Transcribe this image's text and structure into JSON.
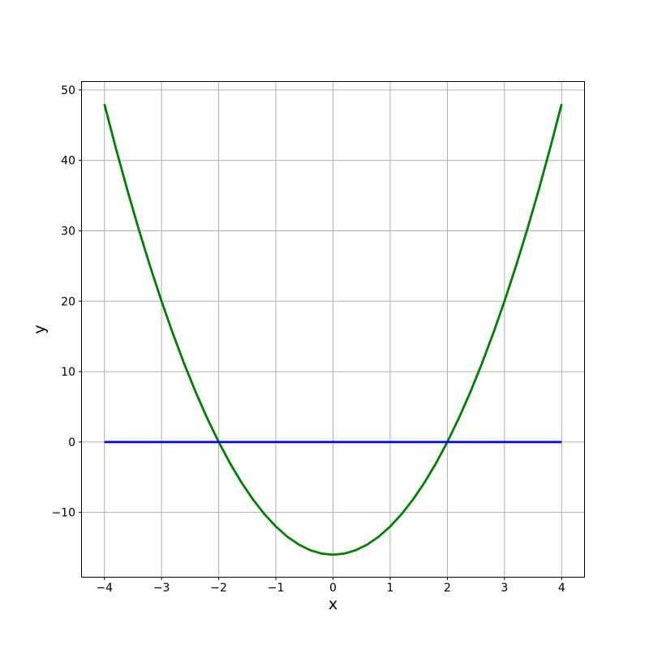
{
  "figure": {
    "background": "#ffffff",
    "spine_color": "#000000"
  },
  "chart_data": {
    "type": "line",
    "title": "",
    "xlabel": "x",
    "ylabel": "y",
    "xlim": [
      -4.4,
      4.4
    ],
    "ylim": [
      -19.2,
      51.2
    ],
    "xticks": [
      -4,
      -3,
      -2,
      -1,
      0,
      1,
      2,
      3,
      4
    ],
    "yticks": [
      -10,
      0,
      10,
      20,
      30,
      40,
      50
    ],
    "grid": true,
    "grid_color": "#b0b0b0",
    "legend": "none",
    "series": [
      {
        "name": "quadratic_curve",
        "color": "#008000",
        "linewidth": 2.8,
        "x": [
          -4,
          -3.8,
          -3.6,
          -3.4,
          -3.2,
          -3,
          -2.8,
          -2.6,
          -2.4,
          -2.2,
          -2,
          -1.8,
          -1.6,
          -1.4,
          -1.2,
          -1,
          -0.8,
          -0.6,
          -0.4,
          -0.2,
          0,
          0.2,
          0.4,
          0.6,
          0.8,
          1,
          1.2,
          1.4,
          1.6,
          1.8,
          2,
          2.2,
          2.4,
          2.6,
          2.8,
          3,
          3.2,
          3.4,
          3.6,
          3.8,
          4
        ],
        "y": [
          48,
          41.76,
          35.84,
          30.24,
          24.96,
          20,
          15.36,
          11.04,
          7.04,
          3.36,
          0,
          -3.04,
          -5.76,
          -8.16,
          -10.24,
          -12,
          -13.44,
          -14.56,
          -15.36,
          -15.84,
          -16,
          -15.84,
          -15.36,
          -14.56,
          -13.44,
          -12,
          -10.24,
          -8.16,
          -5.76,
          -3.04,
          0,
          3.36,
          7.04,
          11.04,
          15.36,
          20,
          24.96,
          30.24,
          35.84,
          41.76,
          48
        ]
      },
      {
        "name": "zero_line",
        "color": "#0000ff",
        "linewidth": 2.8,
        "x": [
          -4,
          4
        ],
        "y": [
          0,
          0
        ]
      }
    ]
  }
}
